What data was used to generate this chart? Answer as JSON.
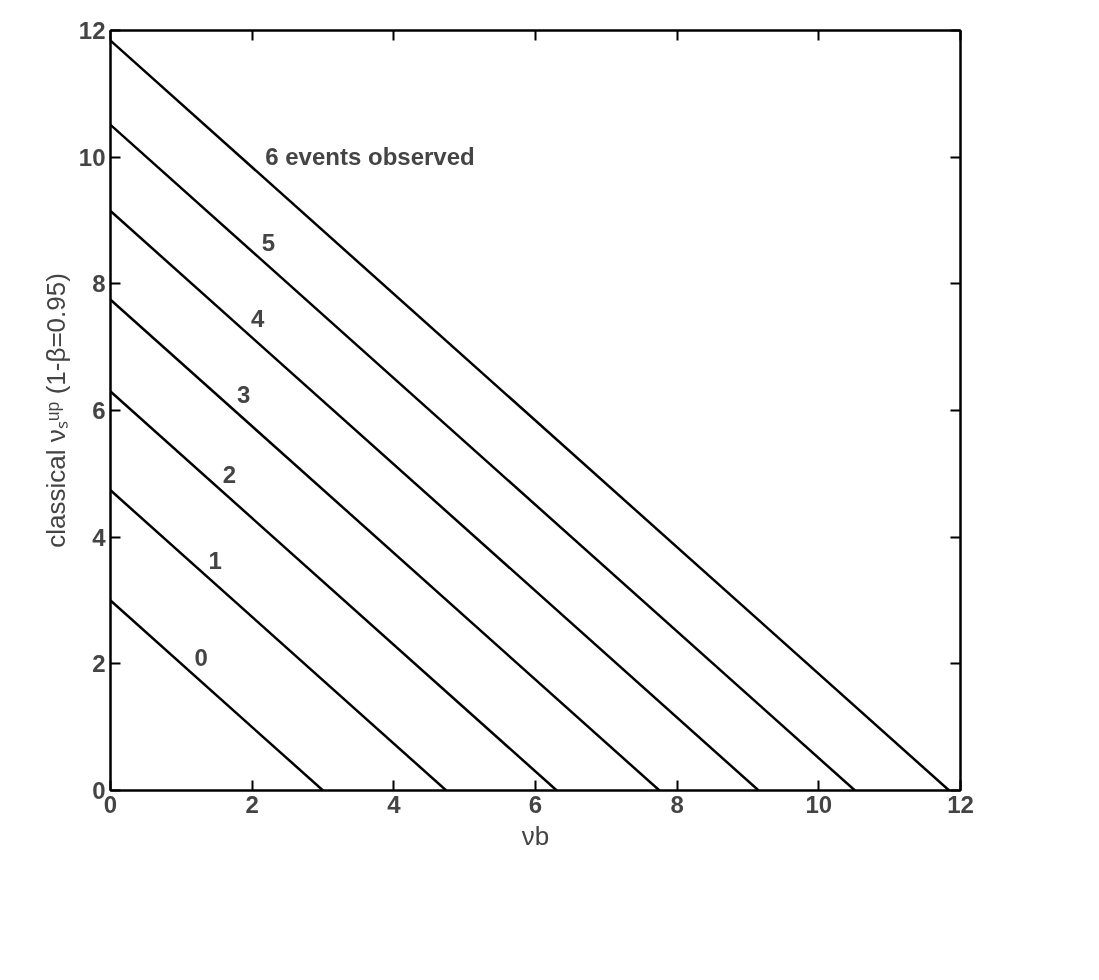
{
  "chart_data": {
    "type": "line",
    "xlabel": "νb",
    "ylabel": "classical νₛᵘᵖ (1-β=0.95)",
    "xlim": [
      0,
      12
    ],
    "ylim": [
      0,
      12
    ],
    "xticks": [
      0,
      2,
      4,
      6,
      8,
      10,
      12
    ],
    "yticks": [
      0,
      2,
      4,
      6,
      8,
      10,
      12
    ],
    "grid": false,
    "marker": "none",
    "line_style": "solid",
    "series": [
      {
        "color": "#000000",
        "x": [
          0,
          3.0
        ],
        "values": [
          3.0,
          0
        ]
      },
      {
        "color": "#000000",
        "x": [
          0,
          4.74
        ],
        "values": [
          4.74,
          0
        ]
      },
      {
        "color": "#000000",
        "x": [
          0,
          6.3
        ],
        "values": [
          6.3,
          0
        ]
      },
      {
        "color": "#000000",
        "x": [
          0,
          7.75
        ],
        "values": [
          7.75,
          0
        ]
      },
      {
        "color": "#000000",
        "x": [
          0,
          9.15
        ],
        "values": [
          9.15,
          0
        ]
      },
      {
        "color": "#000000",
        "x": [
          0,
          10.51
        ],
        "values": [
          10.51,
          0
        ]
      },
      {
        "color": "#000000",
        "x": [
          0,
          11.84
        ],
        "values": [
          11.84,
          0
        ]
      }
    ],
    "annotations": [
      {
        "text": "0",
        "x": 1.1,
        "y": 1.9
      },
      {
        "text": "1",
        "x": 1.3,
        "y": 3.44
      },
      {
        "text": "2",
        "x": 1.5,
        "y": 4.8
      },
      {
        "text": "3",
        "x": 1.7,
        "y": 6.05
      },
      {
        "text": "4",
        "x": 1.9,
        "y": 7.25
      },
      {
        "text": "5",
        "x": 2.05,
        "y": 8.46
      },
      {
        "text": "6  events observed",
        "x": 2.1,
        "y": 9.74
      }
    ]
  }
}
